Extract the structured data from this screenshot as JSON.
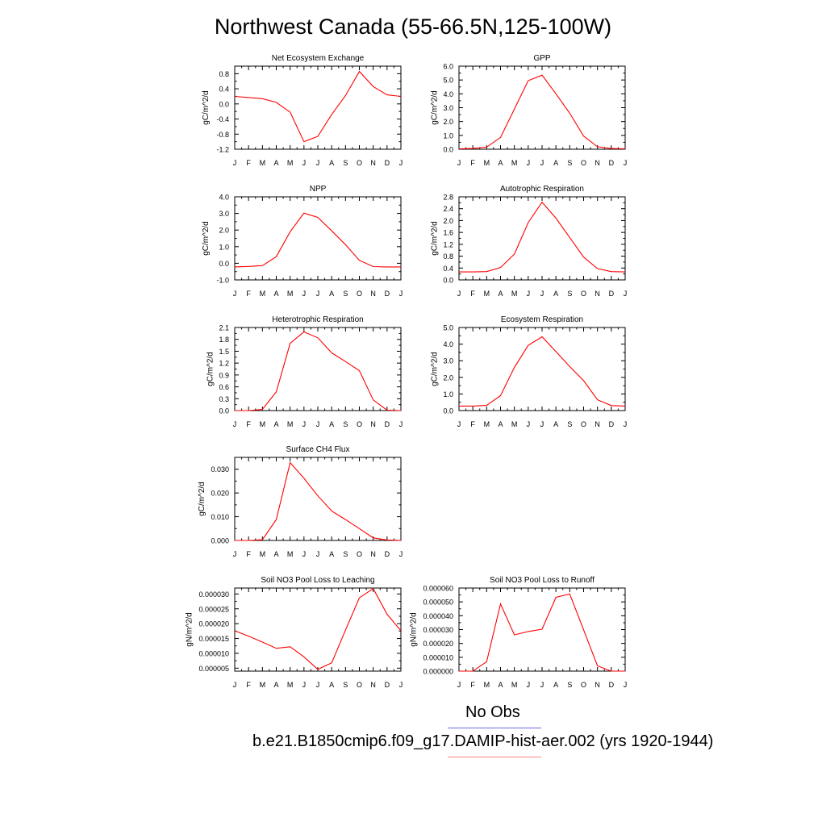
{
  "title": "Northwest Canada (55-66.5N,125-100W)",
  "legend": {
    "items": [
      {
        "label": "No Obs",
        "color": "#6c6ce6"
      },
      {
        "label": "b.e21.B1850cmip6.f09_g17.DAMIP-hist-aer.002 (yrs 1920-1944)",
        "color": "#ff0000"
      }
    ]
  },
  "colors": {
    "series": "#ff0000",
    "axes": "#000000"
  },
  "chart_data": [
    {
      "type": "line",
      "title": "Net Ecosystem Exchange",
      "ylabel": "gC/m^2/d",
      "x": [
        "J",
        "F",
        "M",
        "A",
        "M",
        "J",
        "J",
        "A",
        "S",
        "O",
        "N",
        "D",
        "J"
      ],
      "ylim": [
        -1.2,
        1.0
      ],
      "yticks": [
        -1.2,
        -0.8,
        -0.4,
        0.0,
        0.4,
        0.8
      ],
      "ytick_labels": [
        "-1.2",
        "-0.8",
        "-0.4",
        "0.0",
        "0.4",
        "0.8"
      ],
      "series": [
        {
          "values": [
            0.2,
            0.17,
            0.14,
            0.04,
            -0.22,
            -1.0,
            -0.86,
            -0.28,
            0.22,
            0.86,
            0.46,
            0.24,
            0.2
          ]
        }
      ]
    },
    {
      "type": "line",
      "title": "GPP",
      "ylabel": "gC/m^2/d",
      "x": [
        "J",
        "F",
        "M",
        "A",
        "M",
        "J",
        "J",
        "A",
        "S",
        "O",
        "N",
        "D",
        "J"
      ],
      "ylim": [
        0.0,
        6.0
      ],
      "yticks": [
        0,
        1,
        2,
        3,
        4,
        5,
        6
      ],
      "ytick_labels": [
        "0.0",
        "1.0",
        "2.0",
        "3.0",
        "4.0",
        "5.0",
        "6.0"
      ],
      "series": [
        {
          "values": [
            0.03,
            0.05,
            0.15,
            0.85,
            2.9,
            4.95,
            5.35,
            4.0,
            2.6,
            0.95,
            0.18,
            0.05,
            0.03
          ]
        }
      ]
    },
    {
      "type": "line",
      "title": "NPP",
      "ylabel": "gC/m^2/d",
      "x": [
        "J",
        "F",
        "M",
        "A",
        "M",
        "J",
        "J",
        "A",
        "S",
        "O",
        "N",
        "D",
        "J"
      ],
      "ylim": [
        -1.0,
        4.0
      ],
      "yticks": [
        -1,
        0,
        1,
        2,
        3,
        4
      ],
      "ytick_labels": [
        "-1.0",
        "0.0",
        "1.0",
        "2.0",
        "3.0",
        "4.0"
      ],
      "series": [
        {
          "values": [
            -0.22,
            -0.19,
            -0.14,
            0.4,
            1.9,
            3.02,
            2.76,
            1.95,
            1.12,
            0.18,
            -0.2,
            -0.22,
            -0.22
          ]
        }
      ]
    },
    {
      "type": "line",
      "title": "Autotrophic Respiration",
      "ylabel": "gC/m^2/d",
      "x": [
        "J",
        "F",
        "M",
        "A",
        "M",
        "J",
        "J",
        "A",
        "S",
        "O",
        "N",
        "D",
        "J"
      ],
      "ylim": [
        0.0,
        2.8
      ],
      "yticks": [
        0,
        0.4,
        0.8,
        1.2,
        1.6,
        2.0,
        2.4,
        2.8
      ],
      "ytick_labels": [
        "0.0",
        "0.4",
        "0.8",
        "1.2",
        "1.6",
        "2.0",
        "2.4",
        "2.8"
      ],
      "series": [
        {
          "values": [
            0.27,
            0.27,
            0.28,
            0.42,
            0.87,
            1.93,
            2.62,
            2.08,
            1.43,
            0.77,
            0.38,
            0.28,
            0.27
          ]
        }
      ]
    },
    {
      "type": "line",
      "title": "Heterotrophic Respiration",
      "ylabel": "gC/m^2/d",
      "x": [
        "J",
        "F",
        "M",
        "A",
        "M",
        "J",
        "J",
        "A",
        "S",
        "O",
        "N",
        "D",
        "J"
      ],
      "ylim": [
        0.0,
        2.1
      ],
      "yticks": [
        0,
        0.3,
        0.6,
        0.9,
        1.2,
        1.5,
        1.8,
        2.1
      ],
      "ytick_labels": [
        "0.0",
        "0.3",
        "0.6",
        "0.9",
        "1.2",
        "1.5",
        "1.8",
        "2.1"
      ],
      "series": [
        {
          "values": [
            0.0,
            0.0,
            0.03,
            0.47,
            1.7,
            1.99,
            1.84,
            1.46,
            1.24,
            1.01,
            0.27,
            0.01,
            0.0
          ]
        }
      ]
    },
    {
      "type": "line",
      "title": "Ecosystem Respiration",
      "ylabel": "gC/m^2/d",
      "x": [
        "J",
        "F",
        "M",
        "A",
        "M",
        "J",
        "J",
        "A",
        "S",
        "O",
        "N",
        "D",
        "J"
      ],
      "ylim": [
        0.0,
        5.0
      ],
      "yticks": [
        0,
        1,
        2,
        3,
        4,
        5
      ],
      "ytick_labels": [
        "0.0",
        "1.0",
        "2.0",
        "3.0",
        "4.0",
        "5.0"
      ],
      "series": [
        {
          "values": [
            0.27,
            0.27,
            0.31,
            0.9,
            2.6,
            3.92,
            4.44,
            3.55,
            2.65,
            1.8,
            0.65,
            0.3,
            0.27
          ]
        }
      ]
    },
    {
      "type": "line",
      "title": "Surface CH4 Flux",
      "ylabel": "gC/m^2/d",
      "x": [
        "J",
        "F",
        "M",
        "A",
        "M",
        "J",
        "J",
        "A",
        "S",
        "O",
        "N",
        "D",
        "J"
      ],
      "ylim": [
        0.0,
        0.035
      ],
      "yticks": [
        0,
        0.01,
        0.02,
        0.03
      ],
      "ytick_labels": [
        "0.000",
        "0.010",
        "0.020",
        "0.030"
      ],
      "series": [
        {
          "values": [
            0.0,
            0.0,
            0.0003,
            0.0088,
            0.0328,
            0.0262,
            0.0188,
            0.0124,
            0.0088,
            0.005,
            0.0011,
            0.0002,
            0.0
          ]
        }
      ]
    },
    {
      "type": "line",
      "title": "Soil NO3 Pool Loss to Leaching",
      "ylabel": "gN/m^2/d",
      "x": [
        "J",
        "F",
        "M",
        "A",
        "M",
        "J",
        "J",
        "A",
        "S",
        "O",
        "N",
        "D",
        "J"
      ],
      "ylim": [
        4e-06,
        3.2e-05
      ],
      "yticks": [
        5e-06,
        1e-05,
        1.5e-05,
        2e-05,
        2.5e-05,
        3e-05
      ],
      "ytick_labels": [
        "0.000005",
        "0.000010",
        "0.000015",
        "0.000020",
        "0.000025",
        "0.000030"
      ],
      "series": [
        {
          "values": [
            1.76e-05,
            1.58e-05,
            1.38e-05,
            1.17e-05,
            1.22e-05,
            8.8e-06,
            4.6e-06,
            6.8e-06,
            1.78e-05,
            2.87e-05,
            3.18e-05,
            2.32e-05,
            1.76e-05
          ]
        }
      ]
    },
    {
      "type": "line",
      "title": "Soil NO3 Pool Loss to Runoff",
      "ylabel": "gN/m^2/d",
      "x": [
        "J",
        "F",
        "M",
        "A",
        "M",
        "J",
        "J",
        "A",
        "S",
        "O",
        "N",
        "D",
        "J"
      ],
      "ylim": [
        0.0,
        6e-05
      ],
      "yticks": [
        0,
        1e-05,
        2e-05,
        3e-05,
        4e-05,
        5e-05,
        6e-05
      ],
      "ytick_labels": [
        "0.000000",
        "0.000010",
        "0.000020",
        "0.000030",
        "0.000040",
        "0.000050",
        "0.000060"
      ],
      "series": [
        {
          "values": [
            0.0,
            0.0,
            6.8e-06,
            4.85e-05,
            2.62e-05,
            2.86e-05,
            3.03e-05,
            5.33e-05,
            5.57e-05,
            2.98e-05,
            3.8e-06,
            0.0,
            0.0
          ]
        }
      ]
    }
  ]
}
